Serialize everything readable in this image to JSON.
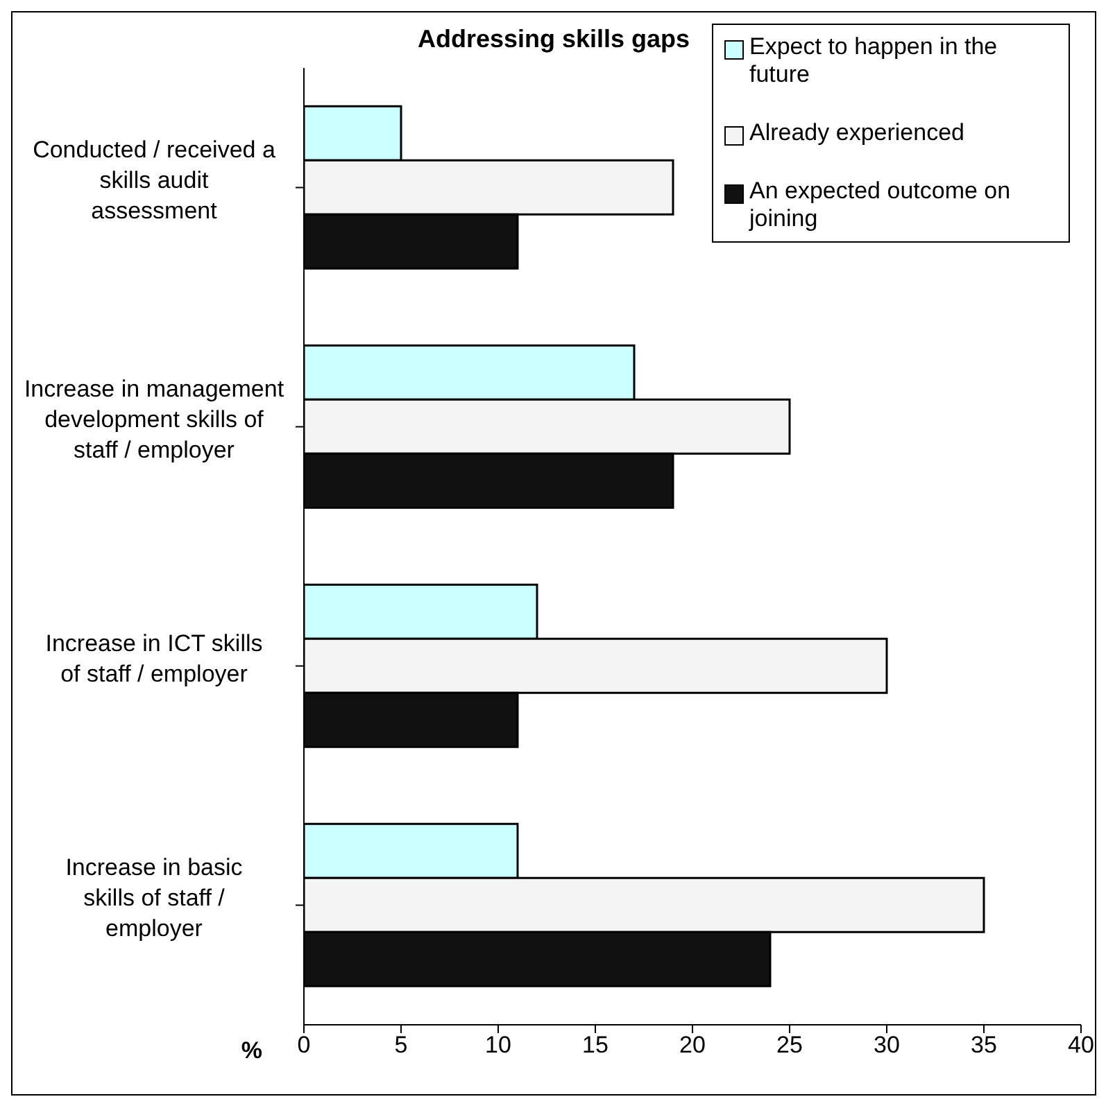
{
  "chart_data": {
    "type": "bar",
    "orientation": "horizontal",
    "title": "Addressing skills gaps",
    "xlabel": "%",
    "categories": [
      "Conducted / received a skills audit assessment",
      "Increase in management development skills of staff / employer",
      "Increase in ICT skills of staff / employer",
      "Increase in basic skills of staff / employer"
    ],
    "series": [
      {
        "name": "Expect to happen in the future",
        "color": "#ccffff",
        "values": [
          5,
          17,
          12,
          11
        ]
      },
      {
        "name": "Already experienced",
        "color": "#f4f4f4",
        "values": [
          19,
          25,
          30,
          35
        ]
      },
      {
        "name": "An expected outcome on joining",
        "color": "#111111",
        "values": [
          11,
          19,
          11,
          24
        ]
      }
    ],
    "xlim": [
      0,
      40
    ],
    "xticks": [
      0,
      5,
      10,
      15,
      20,
      25,
      30,
      35,
      40
    ],
    "grid": false,
    "legend": "top right"
  }
}
